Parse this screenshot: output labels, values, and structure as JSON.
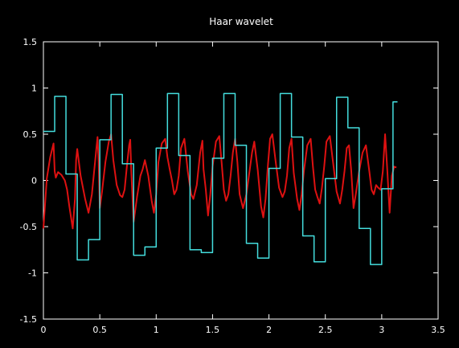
{
  "chart_data": {
    "type": "line",
    "title": "Haar wavelet",
    "xlabel": "",
    "ylabel": "",
    "xlim": [
      0,
      3.5
    ],
    "ylim": [
      -1.5,
      1.5
    ],
    "grid": false,
    "legend": "none",
    "xticks": [
      0,
      0.5,
      1,
      1.5,
      2,
      2.5,
      3,
      3.5
    ],
    "xtick_labels": [
      "0",
      "0.5",
      "1",
      "1.5",
      "2",
      "2.5",
      "3",
      "3.5"
    ],
    "yticks": [
      -1.5,
      -1,
      -0.5,
      0,
      0.5,
      1,
      1.5
    ],
    "ytick_labels": [
      "-1.5",
      "-1",
      "-0.5",
      "0",
      "0.5",
      "1",
      "1.5"
    ],
    "background_color": "#000000",
    "axis_color": "#ffffff",
    "series": [
      {
        "color": "#dd1111",
        "style": "curve",
        "x": [
          0.0,
          0.03,
          0.06,
          0.09,
          0.1,
          0.11,
          0.13,
          0.16,
          0.19,
          0.21,
          0.23,
          0.26,
          0.28,
          0.29,
          0.3,
          0.33,
          0.37,
          0.4,
          0.43,
          0.45,
          0.47,
          0.48,
          0.49,
          0.5,
          0.52,
          0.55,
          0.58,
          0.6,
          0.62,
          0.65,
          0.68,
          0.7,
          0.72,
          0.74,
          0.76,
          0.77,
          0.78,
          0.8,
          0.83,
          0.86,
          0.88,
          0.9,
          0.93,
          0.96,
          0.98,
          1.0,
          1.02,
          1.05,
          1.08,
          1.1,
          1.12,
          1.14,
          1.16,
          1.18,
          1.2,
          1.22,
          1.25,
          1.28,
          1.31,
          1.33,
          1.36,
          1.39,
          1.41,
          1.42,
          1.44,
          1.46,
          1.48,
          1.5,
          1.53,
          1.56,
          1.58,
          1.6,
          1.62,
          1.64,
          1.66,
          1.68,
          1.7,
          1.72,
          1.74,
          1.77,
          1.8,
          1.83,
          1.85,
          1.87,
          1.9,
          1.93,
          1.95,
          1.97,
          1.99,
          2.01,
          2.03,
          2.06,
          2.09,
          2.12,
          2.14,
          2.16,
          2.18,
          2.2,
          2.22,
          2.25,
          2.27,
          2.29,
          2.31,
          2.34,
          2.37,
          2.39,
          2.41,
          2.43,
          2.45,
          2.47,
          2.49,
          2.51,
          2.54,
          2.57,
          2.6,
          2.63,
          2.65,
          2.67,
          2.69,
          2.71,
          2.73,
          2.75,
          2.77,
          2.8,
          2.83,
          2.86,
          2.89,
          2.91,
          2.93,
          2.95,
          2.97,
          2.99,
          3.01,
          3.03,
          3.05,
          3.07,
          3.09,
          3.11,
          3.13
        ],
        "y": [
          -0.52,
          0.02,
          0.25,
          0.4,
          0.1,
          0.03,
          0.09,
          0.06,
          0.0,
          -0.1,
          -0.28,
          -0.52,
          -0.2,
          0.22,
          0.34,
          0.05,
          -0.2,
          -0.35,
          -0.15,
          0.1,
          0.35,
          0.47,
          0.2,
          -0.3,
          -0.12,
          0.2,
          0.42,
          0.5,
          0.22,
          -0.05,
          -0.16,
          -0.18,
          -0.1,
          0.15,
          0.38,
          0.44,
          0.08,
          -0.45,
          -0.18,
          0.05,
          0.12,
          0.22,
          0.05,
          -0.22,
          -0.35,
          -0.15,
          0.2,
          0.4,
          0.45,
          0.25,
          0.12,
          0.0,
          -0.15,
          -0.1,
          0.05,
          0.35,
          0.45,
          0.1,
          -0.15,
          -0.2,
          -0.05,
          0.3,
          0.43,
          0.12,
          -0.1,
          -0.38,
          -0.15,
          0.15,
          0.42,
          0.48,
          0.2,
          -0.1,
          -0.22,
          -0.15,
          0.05,
          0.3,
          0.45,
          0.2,
          -0.15,
          -0.3,
          -0.15,
          0.12,
          0.3,
          0.42,
          0.12,
          -0.28,
          -0.4,
          -0.2,
          0.15,
          0.45,
          0.5,
          0.2,
          -0.08,
          -0.18,
          -0.12,
          0.05,
          0.35,
          0.45,
          0.08,
          -0.2,
          -0.32,
          -0.15,
          0.1,
          0.38,
          0.45,
          0.15,
          -0.1,
          -0.18,
          -0.25,
          -0.08,
          0.15,
          0.42,
          0.48,
          0.18,
          -0.12,
          -0.25,
          -0.1,
          0.1,
          0.35,
          0.38,
          0.1,
          -0.3,
          -0.15,
          0.1,
          0.3,
          0.38,
          0.1,
          -0.1,
          -0.15,
          -0.05,
          -0.08,
          -0.1,
          0.1,
          0.5,
          0.1,
          -0.35,
          0.05,
          0.15,
          0.14
        ]
      },
      {
        "color": "#44dddd",
        "style": "step",
        "x": [
          0.0,
          0.1,
          0.2,
          0.3,
          0.4,
          0.5,
          0.6,
          0.7,
          0.8,
          0.9,
          1.0,
          1.1,
          1.2,
          1.3,
          1.4,
          1.5,
          1.6,
          1.7,
          1.8,
          1.9,
          2.0,
          2.1,
          2.2,
          2.3,
          2.4,
          2.5,
          2.6,
          2.7,
          2.8,
          2.9,
          3.0,
          3.1,
          3.2
        ],
        "y": [
          0.53,
          0.91,
          0.07,
          -0.86,
          -0.64,
          0.44,
          0.93,
          0.18,
          -0.81,
          -0.72,
          0.35,
          0.94,
          0.27,
          -0.75,
          -0.78,
          0.24,
          0.94,
          0.38,
          -0.68,
          -0.84,
          0.13,
          0.94,
          0.47,
          -0.6,
          -0.88,
          0.02,
          0.9,
          0.57,
          -0.52,
          -0.91,
          -0.09,
          0.85,
          0.85
        ]
      }
    ]
  }
}
